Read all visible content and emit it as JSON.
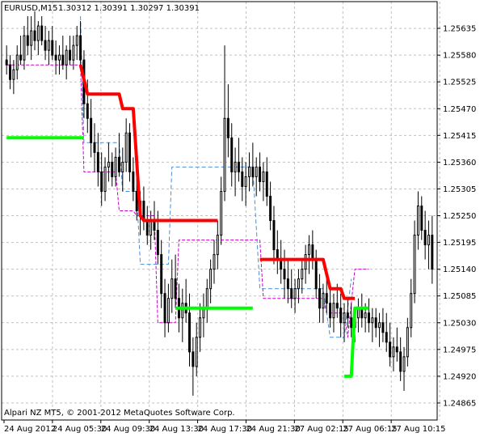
{
  "header": {
    "symbol": "EURUSD,M15",
    "ohlc": "1.30312 1.30391 1.30297 1.30391"
  },
  "copyright": "Alpari NZ MT5, © 2001-2012 MetaQuotes Software Corp.",
  "colors": {
    "background": "#ffffff",
    "grid": "#c0c0c0",
    "candle": "#000000",
    "upper_line": "#ff0000",
    "lower_line": "#00ff00",
    "channel_mid": "#cc00cc",
    "channel_outer": "#4a8fd4"
  },
  "chart_data": {
    "type": "candlestick",
    "grid": true,
    "ylim": [
      1.2483,
      1.2569
    ],
    "y_ticks": [
      "1.25635",
      "1.25580",
      "1.25525",
      "1.25470",
      "1.25415",
      "1.25360",
      "1.25305",
      "1.25250",
      "1.25195",
      "1.25140",
      "1.25085",
      "1.25030",
      "1.24975",
      "1.24920",
      "1.24865"
    ],
    "x_ticks": [
      "24 Aug 2012",
      "24 Aug 05:30",
      "24 Aug 09:30",
      "24 Aug 13:30",
      "24 Aug 17:30",
      "24 Aug 21:30",
      "27 Aug 02:15",
      "27 Aug 06:15",
      "27 Aug 10:15"
    ],
    "series": [
      {
        "values": [
          [
            1.2557,
            1.256,
            1.2554,
            1.2556
          ],
          [
            1.2556,
            1.2558,
            1.2551,
            1.2553
          ],
          [
            1.2553,
            1.2557,
            1.255,
            1.2555
          ],
          [
            1.2555,
            1.256,
            1.2553,
            1.2558
          ],
          [
            1.2558,
            1.2562,
            1.2556,
            1.2557
          ],
          [
            1.2557,
            1.2564,
            1.2555,
            1.2562
          ],
          [
            1.2562,
            1.2566,
            1.2558,
            1.256
          ],
          [
            1.256,
            1.2566,
            1.2557,
            1.2563
          ],
          [
            1.2563,
            1.2567,
            1.2559,
            1.2561
          ],
          [
            1.2561,
            1.2565,
            1.2558,
            1.2564
          ],
          [
            1.2564,
            1.2566,
            1.256,
            1.2561
          ],
          [
            1.2561,
            1.2564,
            1.2557,
            1.2559
          ],
          [
            1.2559,
            1.2563,
            1.2556,
            1.2561
          ],
          [
            1.2561,
            1.2564,
            1.2557,
            1.2558
          ],
          [
            1.2558,
            1.2561,
            1.2554,
            1.2557
          ],
          [
            1.2557,
            1.256,
            1.2554,
            1.2558
          ],
          [
            1.2558,
            1.2562,
            1.2555,
            1.2556
          ],
          [
            1.2556,
            1.256,
            1.2553,
            1.2559
          ],
          [
            1.2559,
            1.2562,
            1.2556,
            1.2557
          ],
          [
            1.2557,
            1.2562,
            1.2555,
            1.256
          ],
          [
            1.256,
            1.2564,
            1.2557,
            1.2562
          ],
          [
            1.2562,
            1.2565,
            1.2555,
            1.2557
          ],
          [
            1.2557,
            1.2559,
            1.2545,
            1.2548
          ],
          [
            1.2548,
            1.2553,
            1.2542,
            1.2545
          ],
          [
            1.2545,
            1.2549,
            1.2537,
            1.254
          ],
          [
            1.254,
            1.2544,
            1.2534,
            1.2538
          ],
          [
            1.2538,
            1.2542,
            1.2531,
            1.2534
          ],
          [
            1.2534,
            1.2538,
            1.2527,
            1.253
          ],
          [
            1.253,
            1.2537,
            1.2528,
            1.2535
          ],
          [
            1.2535,
            1.254,
            1.2532,
            1.2536
          ],
          [
            1.2536,
            1.2538,
            1.2531,
            1.2533
          ],
          [
            1.2533,
            1.2539,
            1.2531,
            1.2537
          ],
          [
            1.2537,
            1.2542,
            1.2533,
            1.2534
          ],
          [
            1.2534,
            1.2539,
            1.253,
            1.2536
          ],
          [
            1.2536,
            1.2545,
            1.2534,
            1.2542
          ],
          [
            1.2542,
            1.2544,
            1.2532,
            1.2534
          ],
          [
            1.2534,
            1.2537,
            1.2528,
            1.253
          ],
          [
            1.253,
            1.2533,
            1.2524,
            1.2526
          ],
          [
            1.2526,
            1.253,
            1.2521,
            1.2528
          ],
          [
            1.2528,
            1.2531,
            1.2522,
            1.2524
          ],
          [
            1.2524,
            1.2527,
            1.2519,
            1.2521
          ],
          [
            1.2521,
            1.2526,
            1.2518,
            1.2524
          ],
          [
            1.2524,
            1.2528,
            1.252,
            1.2522
          ],
          [
            1.2522,
            1.2526,
            1.2515,
            1.2517
          ],
          [
            1.2517,
            1.252,
            1.2506,
            1.2509
          ],
          [
            1.2509,
            1.2512,
            1.25,
            1.2503
          ],
          [
            1.2503,
            1.2511,
            1.2501,
            1.2508
          ],
          [
            1.2508,
            1.2516,
            1.2505,
            1.2512
          ],
          [
            1.2512,
            1.2517,
            1.2506,
            1.2508
          ],
          [
            1.2508,
            1.2511,
            1.2501,
            1.2504
          ],
          [
            1.2504,
            1.251,
            1.2499,
            1.2507
          ],
          [
            1.2507,
            1.2512,
            1.2503,
            1.2505
          ],
          [
            1.2505,
            1.2509,
            1.2494,
            1.2497
          ],
          [
            1.2497,
            1.25,
            1.2488,
            1.2494
          ],
          [
            1.2494,
            1.2503,
            1.2492,
            1.25
          ],
          [
            1.25,
            1.2507,
            1.2497,
            1.2504
          ],
          [
            1.2504,
            1.2509,
            1.25,
            1.2506
          ],
          [
            1.2506,
            1.2512,
            1.2503,
            1.251
          ],
          [
            1.251,
            1.2516,
            1.2507,
            1.2514
          ],
          [
            1.2514,
            1.252,
            1.2511,
            1.2517
          ],
          [
            1.2517,
            1.2524,
            1.2514,
            1.2521
          ],
          [
            1.2521,
            1.2533,
            1.2519,
            1.253
          ],
          [
            1.253,
            1.256,
            1.2528,
            1.2545
          ],
          [
            1.2545,
            1.2552,
            1.2537,
            1.2541
          ],
          [
            1.2541,
            1.2544,
            1.2531,
            1.2534
          ],
          [
            1.2534,
            1.2539,
            1.2529,
            1.2536
          ],
          [
            1.2536,
            1.2541,
            1.2532,
            1.2534
          ],
          [
            1.2534,
            1.2537,
            1.2528,
            1.2531
          ],
          [
            1.2531,
            1.2536,
            1.2527,
            1.2533
          ],
          [
            1.2533,
            1.2538,
            1.253,
            1.2535
          ],
          [
            1.2535,
            1.254,
            1.2531,
            1.2533
          ],
          [
            1.2533,
            1.2537,
            1.2529,
            1.2535
          ],
          [
            1.2535,
            1.2538,
            1.253,
            1.2532
          ],
          [
            1.2532,
            1.2536,
            1.2528,
            1.2534
          ],
          [
            1.2534,
            1.2537,
            1.2527,
            1.2529
          ],
          [
            1.2529,
            1.2532,
            1.2522,
            1.2524
          ],
          [
            1.2524,
            1.2527,
            1.2515,
            1.2518
          ],
          [
            1.2518,
            1.2522,
            1.2513,
            1.2516
          ],
          [
            1.2516,
            1.252,
            1.2511,
            1.2514
          ],
          [
            1.2514,
            1.2518,
            1.2508,
            1.2512
          ],
          [
            1.2512,
            1.2516,
            1.2507,
            1.251
          ],
          [
            1.251,
            1.2514,
            1.2506,
            1.2508
          ],
          [
            1.2508,
            1.2512,
            1.2505,
            1.251
          ],
          [
            1.251,
            1.2514,
            1.2507,
            1.2512
          ],
          [
            1.2512,
            1.2516,
            1.2509,
            1.2514
          ],
          [
            1.2514,
            1.2519,
            1.2511,
            1.2517
          ],
          [
            1.2517,
            1.2521,
            1.2513,
            1.2519
          ],
          [
            1.2519,
            1.2522,
            1.2514,
            1.2516
          ],
          [
            1.2516,
            1.2518,
            1.2508,
            1.251
          ],
          [
            1.251,
            1.2513,
            1.2503,
            1.2506
          ],
          [
            1.2506,
            1.2511,
            1.2503,
            1.2509
          ],
          [
            1.2509,
            1.2513,
            1.2505,
            1.2507
          ],
          [
            1.2507,
            1.251,
            1.2502,
            1.2504
          ],
          [
            1.2504,
            1.2509,
            1.2501,
            1.2507
          ],
          [
            1.2507,
            1.2511,
            1.2504,
            1.2506
          ],
          [
            1.2506,
            1.2509,
            1.25,
            1.2503
          ],
          [
            1.2503,
            1.2507,
            1.2499,
            1.2505
          ],
          [
            1.2505,
            1.2508,
            1.2502,
            1.2504
          ],
          [
            1.2504,
            1.2507,
            1.25,
            1.2502
          ],
          [
            1.2502,
            1.2506,
            1.2499,
            1.2504
          ],
          [
            1.2504,
            1.2508,
            1.2501,
            1.2506
          ],
          [
            1.2506,
            1.2509,
            1.2502,
            1.2504
          ],
          [
            1.2504,
            1.2507,
            1.2501,
            1.2505
          ],
          [
            1.2505,
            1.2508,
            1.2501,
            1.2503
          ],
          [
            1.2503,
            1.2506,
            1.2499,
            1.2504
          ],
          [
            1.2504,
            1.2506,
            1.25,
            1.2502
          ],
          [
            1.2502,
            1.2505,
            1.2498,
            1.2503
          ],
          [
            1.2503,
            1.2506,
            1.2499,
            1.2501
          ],
          [
            1.2501,
            1.2505,
            1.2497,
            1.2499
          ],
          [
            1.2499,
            1.2503,
            1.2494,
            1.2496
          ],
          [
            1.2496,
            1.25,
            1.2493,
            1.2498
          ],
          [
            1.2498,
            1.2502,
            1.2495,
            1.2497
          ],
          [
            1.2497,
            1.25,
            1.2491,
            1.2493
          ],
          [
            1.2493,
            1.2498,
            1.2489,
            1.2496
          ],
          [
            1.2496,
            1.2504,
            1.2494,
            1.2502
          ],
          [
            1.2502,
            1.2512,
            1.25,
            1.2509
          ],
          [
            1.2509,
            1.2524,
            1.2507,
            1.2521
          ],
          [
            1.2521,
            1.253,
            1.2518,
            1.2527
          ],
          [
            1.2527,
            1.2529,
            1.252,
            1.2522
          ],
          [
            1.2522,
            1.2526,
            1.2516,
            1.2519
          ],
          [
            1.2519,
            1.2524,
            1.2514,
            1.2521
          ],
          [
            1.2521,
            1.2525,
            1.2511,
            1.2514
          ]
        ]
      },
      {
        "points": [
          [
            21,
            null
          ],
          [
            21,
            1.2556
          ],
          [
            23,
            1.255
          ],
          [
            32,
            1.255
          ],
          [
            33,
            1.2547
          ],
          [
            36,
            1.2547
          ],
          [
            38,
            1.2525
          ],
          [
            39,
            1.2524
          ],
          [
            48,
            1.2524
          ],
          [
            49,
            1.2524
          ],
          [
            60,
            1.2524
          ],
          [
            null,
            null
          ],
          [
            72,
            1.2516
          ],
          [
            90,
            1.2516
          ],
          [
            92,
            1.251
          ],
          [
            95,
            1.251
          ],
          [
            96,
            1.2508
          ],
          [
            99,
            1.2508
          ]
        ]
      },
      {
        "points": [
          [
            0,
            1.2541
          ],
          [
            22,
            1.2541
          ],
          [
            null,
            null
          ],
          [
            48,
            1.2506
          ],
          [
            70,
            1.2506
          ],
          [
            null,
            null
          ],
          [
            96,
            1.2492
          ],
          [
            98,
            1.2492
          ],
          [
            99,
            1.2506
          ],
          [
            103,
            1.2506
          ]
        ]
      },
      {
        "points": [
          [
            0,
            1.2556
          ],
          [
            21,
            1.2556
          ],
          [
            22,
            1.2534
          ],
          [
            31,
            1.2534
          ],
          [
            32,
            1.2526
          ],
          [
            36,
            1.2526
          ],
          [
            37,
            1.2525
          ],
          [
            42,
            1.2525
          ],
          [
            43,
            1.2503
          ],
          [
            48,
            1.2503
          ],
          [
            49,
            1.252
          ],
          [
            72,
            1.252
          ],
          [
            73,
            1.2508
          ],
          [
            90,
            1.2508
          ],
          [
            91,
            1.2505
          ],
          [
            96,
            1.2505
          ],
          [
            97,
            1.25
          ],
          [
            99,
            1.2514
          ],
          [
            103,
            1.2514
          ]
        ]
      },
      {
        "points": [
          [
            21,
            1.2566
          ],
          [
            22,
            1.254
          ],
          [
            32,
            1.254
          ],
          [
            33,
            1.253
          ],
          [
            37,
            1.253
          ],
          [
            38,
            1.2515
          ],
          [
            46,
            1.2515
          ],
          [
            47,
            1.2535
          ],
          [
            70,
            1.2535
          ],
          [
            72,
            1.251
          ],
          [
            90,
            1.251
          ],
          [
            92,
            1.25
          ],
          [
            96,
            1.25
          ],
          [
            98,
            1.2512
          ]
        ]
      }
    ]
  }
}
